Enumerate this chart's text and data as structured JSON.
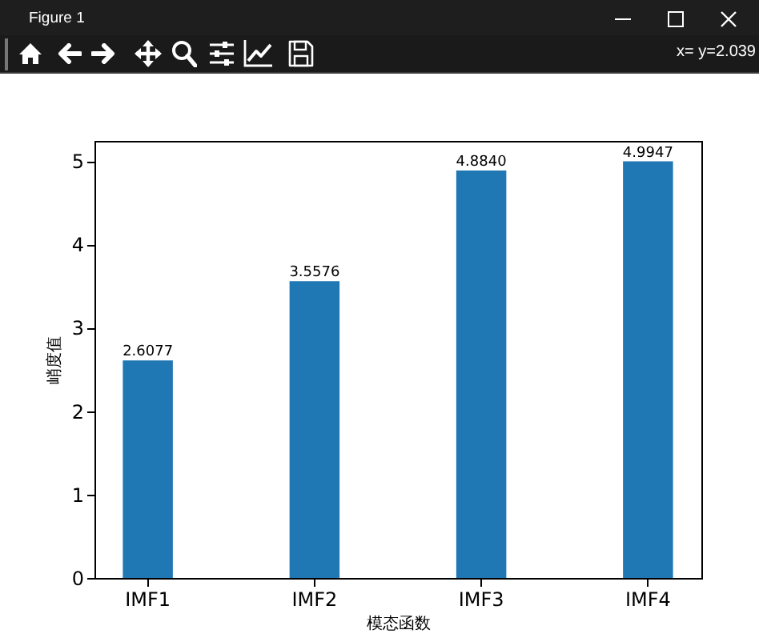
{
  "chart_data": {
    "type": "bar",
    "xlabel": "模态函数",
    "ylabel": "峭度值",
    "annotations": [
      "Figure 1",
      "x= y=2.039"
    ],
    "categories": [
      "IMF1",
      "IMF2",
      "IMF3",
      "IMF4"
    ],
    "values": [
      2.6077,
      3.5576,
      4.884,
      4.9947
    ],
    "value_labels": [
      "2.6077",
      "3.5576",
      "4.8840",
      "4.9947"
    ],
    "color": "#1f77b4",
    "ylim": [
      0,
      5.24
    ],
    "yticks": [
      0,
      1,
      2,
      3,
      4,
      5
    ]
  }
}
